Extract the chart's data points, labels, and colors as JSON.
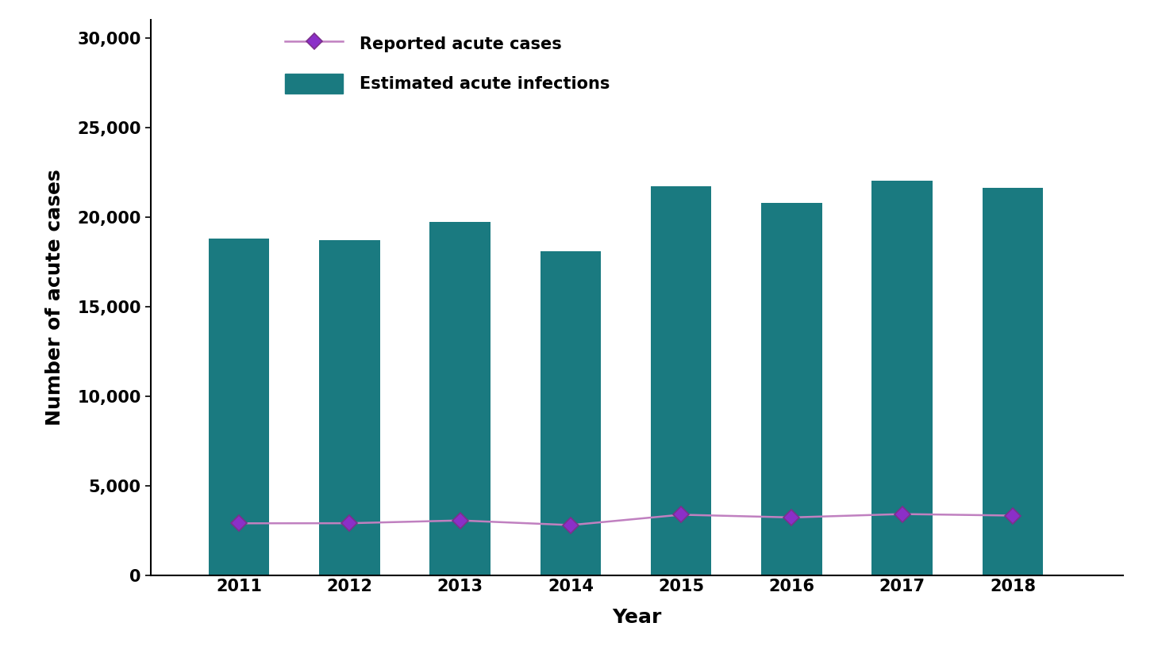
{
  "years": [
    2011,
    2012,
    2013,
    2014,
    2015,
    2016,
    2017,
    2018
  ],
  "reported_cases": [
    2890,
    2895,
    3050,
    2791,
    3370,
    3218,
    3407,
    3322
  ],
  "estimated_infections": [
    18800,
    18700,
    19700,
    18100,
    21700,
    20800,
    22000,
    21600
  ],
  "bar_color": "#1a7a80",
  "line_color": "#c080c0",
  "line_marker_color": "#7b2f8c",
  "line_marker_face": "#8b2fc8",
  "ylabel": "Number of acute cases",
  "xlabel": "Year",
  "ylim": [
    0,
    31000
  ],
  "yticks": [
    0,
    5000,
    10000,
    15000,
    20000,
    25000,
    30000
  ],
  "ytick_labels": [
    "0",
    "5,000",
    "10,000",
    "15,000",
    "20,000",
    "25,000",
    "30,000"
  ],
  "legend_line_label": "Reported acute cases",
  "legend_bar_label": "Estimated acute infections",
  "background_color": "#ffffff",
  "bar_width": 0.55,
  "axis_label_fontsize": 18,
  "tick_fontsize": 15,
  "legend_fontsize": 15
}
